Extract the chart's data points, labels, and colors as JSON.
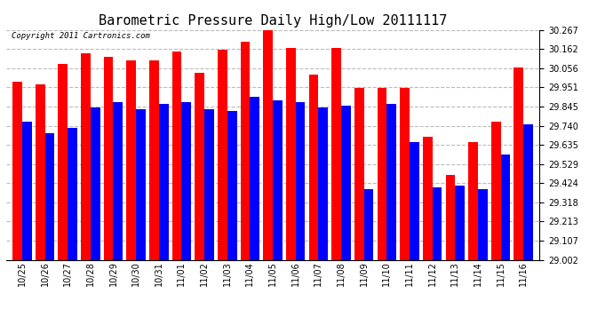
{
  "title": "Barometric Pressure Daily High/Low 20111117",
  "copyright": "Copyright 2011 Cartronics.com",
  "dates": [
    "10/25",
    "10/26",
    "10/27",
    "10/28",
    "10/29",
    "10/30",
    "10/31",
    "11/01",
    "11/02",
    "11/03",
    "11/04",
    "11/05",
    "11/06",
    "11/07",
    "11/08",
    "11/09",
    "11/10",
    "11/11",
    "11/12",
    "11/13",
    "11/14",
    "11/15",
    "11/16"
  ],
  "highs": [
    29.98,
    29.97,
    30.08,
    30.14,
    30.12,
    30.1,
    30.1,
    30.15,
    30.03,
    30.16,
    30.2,
    30.27,
    30.17,
    30.02,
    30.17,
    29.95,
    29.95,
    29.95,
    29.68,
    29.47,
    29.65,
    29.76,
    30.06
  ],
  "lows": [
    29.76,
    29.7,
    29.73,
    29.84,
    29.87,
    29.83,
    29.86,
    29.87,
    29.83,
    29.82,
    29.9,
    29.88,
    29.87,
    29.84,
    29.85,
    29.39,
    29.86,
    29.65,
    29.4,
    29.41,
    29.39,
    29.58,
    29.75
  ],
  "ymin": 29.002,
  "ymax": 30.267,
  "yticks": [
    29.002,
    29.107,
    29.213,
    29.318,
    29.424,
    29.529,
    29.635,
    29.74,
    29.845,
    29.951,
    30.056,
    30.162,
    30.267
  ],
  "bar_width": 0.42,
  "high_color": "#ff0000",
  "low_color": "#0000ff",
  "bg_color": "#ffffff",
  "grid_color": "#bbbbbb",
  "title_fontsize": 11,
  "tick_fontsize": 7,
  "copyright_fontsize": 6.5
}
